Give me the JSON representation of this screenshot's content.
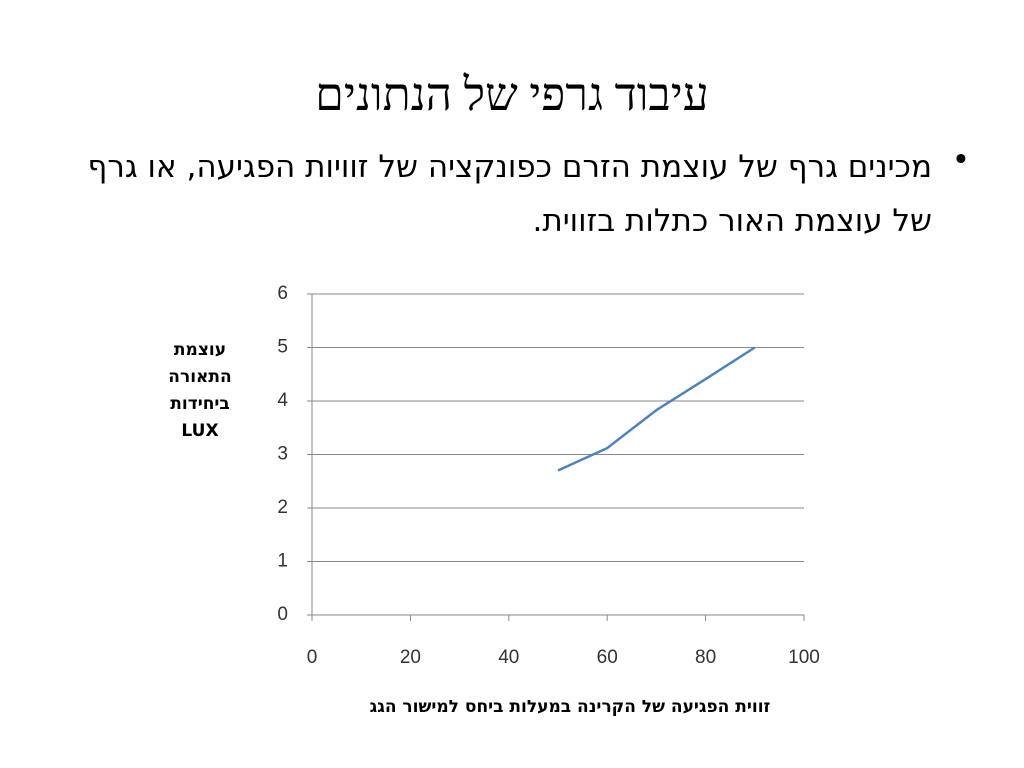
{
  "slide": {
    "title": "עיבוד גרפי של הנתונים",
    "bullet": "מכינים גרף של עוצמת הזרם כפונקציה של זוויות הפגיעה, או גרף של עוצמת האור כתלות בזווית."
  },
  "chart_data": {
    "type": "line",
    "ylabel": "עוצמת התאורה ביחידות LUX",
    "xlabel": "זווית הפגיעה של הקרינה במעלות ביחס למישור הגג",
    "x": [
      50,
      60,
      70,
      80,
      90
    ],
    "series": [
      {
        "color": "#4f81bd",
        "values": [
          2.7,
          3.12,
          3.83,
          4.41,
          5
        ]
      }
    ],
    "xlim": [
      0,
      100
    ],
    "xticks": [
      0,
      20,
      40,
      60,
      80,
      100
    ],
    "ylim": [
      0,
      6
    ],
    "yticks": [
      0,
      1,
      2,
      3,
      4,
      5,
      6
    ],
    "grid": true
  }
}
